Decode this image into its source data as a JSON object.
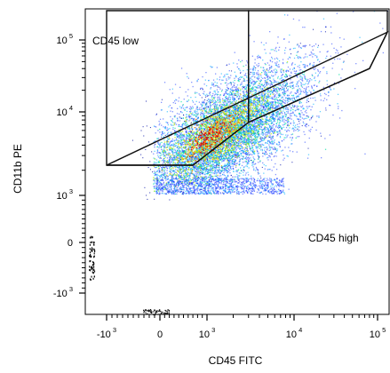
{
  "chart_data": {
    "type": "scatter",
    "subtype": "flow-cytometry-density-plot",
    "title": "",
    "xlabel": "CD45 FITC",
    "ylabel": "CD11b PE",
    "x_scale": "biexponential",
    "y_scale": "biexponential",
    "x_ticks": [
      {
        "value": -1000,
        "base": "-10",
        "exp": "3"
      },
      {
        "value": 0,
        "base": "0",
        "exp": ""
      },
      {
        "value": 1000,
        "base": "10",
        "exp": "3"
      },
      {
        "value": 10000,
        "base": "10",
        "exp": "4"
      },
      {
        "value": 100000,
        "base": "10",
        "exp": "5"
      }
    ],
    "y_ticks": [
      {
        "value": 100000,
        "base": "10",
        "exp": "5"
      },
      {
        "value": 10000,
        "base": "10",
        "exp": "4"
      },
      {
        "value": 1000,
        "base": "10",
        "exp": "3"
      },
      {
        "value": 0,
        "base": "0",
        "exp": ""
      },
      {
        "value": -1000,
        "base": "-10",
        "exp": "3"
      }
    ],
    "density_colormap": [
      "#1e3cff",
      "#00b4ff",
      "#00e0a0",
      "#b8f000",
      "#ffe000",
      "#ff8000",
      "#e00000"
    ],
    "gates": [
      {
        "name": "CD45 low",
        "vertices": [
          [
            -1000,
            2300
          ],
          [
            0,
            2300
          ],
          [
            700,
            2300
          ],
          [
            3000,
            7500
          ],
          [
            3000,
            200000
          ],
          [
            -1000,
            200000
          ]
        ]
      },
      {
        "name": "",
        "vertices": [
          [
            3000,
            200000
          ],
          [
            3000,
            7500
          ],
          [
            80000,
            40000
          ],
          [
            180000,
            120000
          ],
          [
            180000,
            200000
          ]
        ]
      },
      {
        "name": "CD45 high",
        "vertices": [
          [
            -1000,
            2300
          ],
          [
            700,
            2300
          ],
          [
            3000,
            7500
          ],
          [
            80000,
            40000
          ],
          [
            180000,
            120000
          ]
        ]
      }
    ],
    "grid": false,
    "legend": "none"
  }
}
